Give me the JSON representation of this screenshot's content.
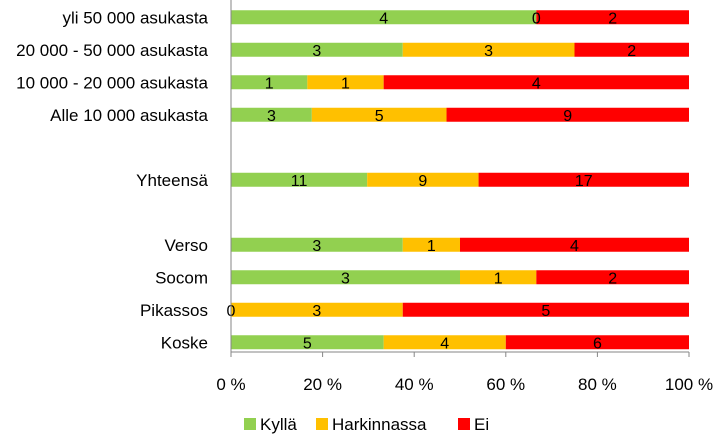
{
  "chart_data": {
    "type": "bar",
    "orientation": "horizontal",
    "stacked": "percent",
    "categories": [
      "yli 50 000 asukasta",
      "20 000 - 50 000 asukasta",
      "10 000 - 20 000 asukasta",
      "Alle 10 000 asukasta",
      "",
      "Yhteensä",
      "",
      "Verso",
      "Socom",
      "Pikassos",
      "Koske"
    ],
    "series": [
      {
        "name": "Kyllä",
        "color": "#92d050",
        "values": [
          4,
          3,
          1,
          3,
          null,
          11,
          null,
          3,
          3,
          0,
          5
        ]
      },
      {
        "name": "Harkinnassa",
        "color": "#ffc000",
        "values": [
          0,
          3,
          1,
          5,
          null,
          9,
          null,
          1,
          1,
          3,
          4
        ]
      },
      {
        "name": "Ei",
        "color": "#ff0000",
        "values": [
          2,
          2,
          4,
          9,
          null,
          17,
          null,
          4,
          2,
          5,
          6
        ]
      }
    ],
    "xaxis": {
      "ticks": [
        0,
        20,
        40,
        60,
        80,
        100
      ],
      "tick_labels": [
        "0 %",
        "20 %",
        "40 %",
        "60 %",
        "80 %",
        "100 %"
      ],
      "range": [
        0,
        100
      ]
    },
    "legend_position": "bottom",
    "grid": false,
    "title": ""
  }
}
